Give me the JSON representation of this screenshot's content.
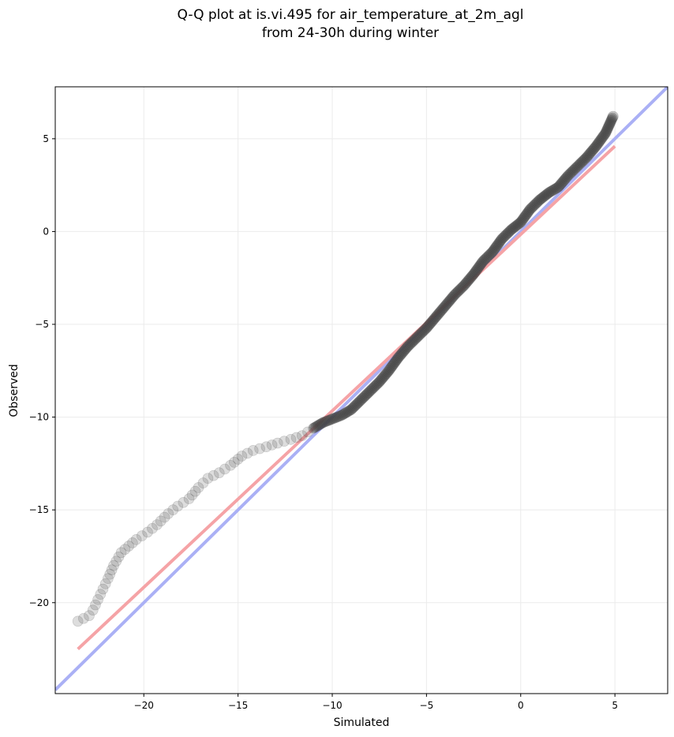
{
  "chart_data": {
    "type": "scatter",
    "title": [
      "Q-Q plot at is.vi.495 for air_temperature_at_2m_agl",
      "from 24-30h during winter"
    ],
    "xlabel": "Simulated",
    "ylabel": "Observed",
    "xlim": [
      -24.7,
      7.8
    ],
    "ylim": [
      -24.9,
      7.8
    ],
    "grid": true,
    "legend": "none",
    "x_ticks": [
      -20,
      -15,
      -10,
      -5,
      0,
      5
    ],
    "x_tick_labels": [
      "−20",
      "−15",
      "−10",
      "−5",
      "0",
      "5"
    ],
    "y_ticks": [
      5,
      0,
      -5,
      -10,
      -15,
      -20
    ],
    "y_tick_labels": [
      "5",
      "0",
      "−5",
      "−10",
      "−15",
      "−20"
    ],
    "colors": {
      "points": "#444444",
      "identity_line": "#aab0f5",
      "fit_line": "#f5a3a6",
      "grid": "#ebebeb"
    },
    "reference_lines": [
      {
        "kind": "identity",
        "x": [
          -24.7,
          7.8
        ],
        "y": [
          -24.7,
          7.8
        ]
      },
      {
        "kind": "fit",
        "x": [
          -23.5,
          5.0
        ],
        "y": [
          -22.5,
          4.6
        ]
      }
    ],
    "quantile_curve": {
      "x": [
        -23.5,
        -22.9,
        -22.7,
        -21.9,
        -21.6,
        -21.2,
        -20.4,
        -19.8,
        -19.3,
        -18.7,
        -18.2,
        -17.6,
        -17.1,
        -16.6,
        -16.0,
        -15.4,
        -14.8,
        -14.2,
        -13.5,
        -12.9,
        -12.2,
        -11.6,
        -11.0,
        -10.5,
        -10.0,
        -9.5,
        -9.0,
        -8.5,
        -8.0,
        -7.5,
        -7.0,
        -6.5,
        -6.0,
        -5.5,
        -5.0,
        -4.5,
        -4.0,
        -3.5,
        -3.0,
        -2.5,
        -2.0,
        -1.5,
        -1.0,
        -0.5,
        0.0,
        0.5,
        1.0,
        1.5,
        2.0,
        2.5,
        3.0,
        3.5,
        4.0,
        4.5,
        4.9
      ],
      "y": [
        -21.0,
        -20.7,
        -20.4,
        -18.7,
        -18.0,
        -17.3,
        -16.6,
        -16.2,
        -15.8,
        -15.2,
        -14.8,
        -14.4,
        -13.8,
        -13.3,
        -13.0,
        -12.6,
        -12.1,
        -11.8,
        -11.6,
        -11.4,
        -11.2,
        -11.0,
        -10.6,
        -10.3,
        -10.1,
        -9.9,
        -9.6,
        -9.1,
        -8.6,
        -8.1,
        -7.5,
        -6.8,
        -6.2,
        -5.7,
        -5.2,
        -4.6,
        -4.0,
        -3.4,
        -2.9,
        -2.3,
        -1.6,
        -1.1,
        -0.4,
        0.1,
        0.5,
        1.2,
        1.7,
        2.1,
        2.4,
        3.0,
        3.5,
        4.0,
        4.6,
        5.3,
        6.2
      ]
    }
  }
}
